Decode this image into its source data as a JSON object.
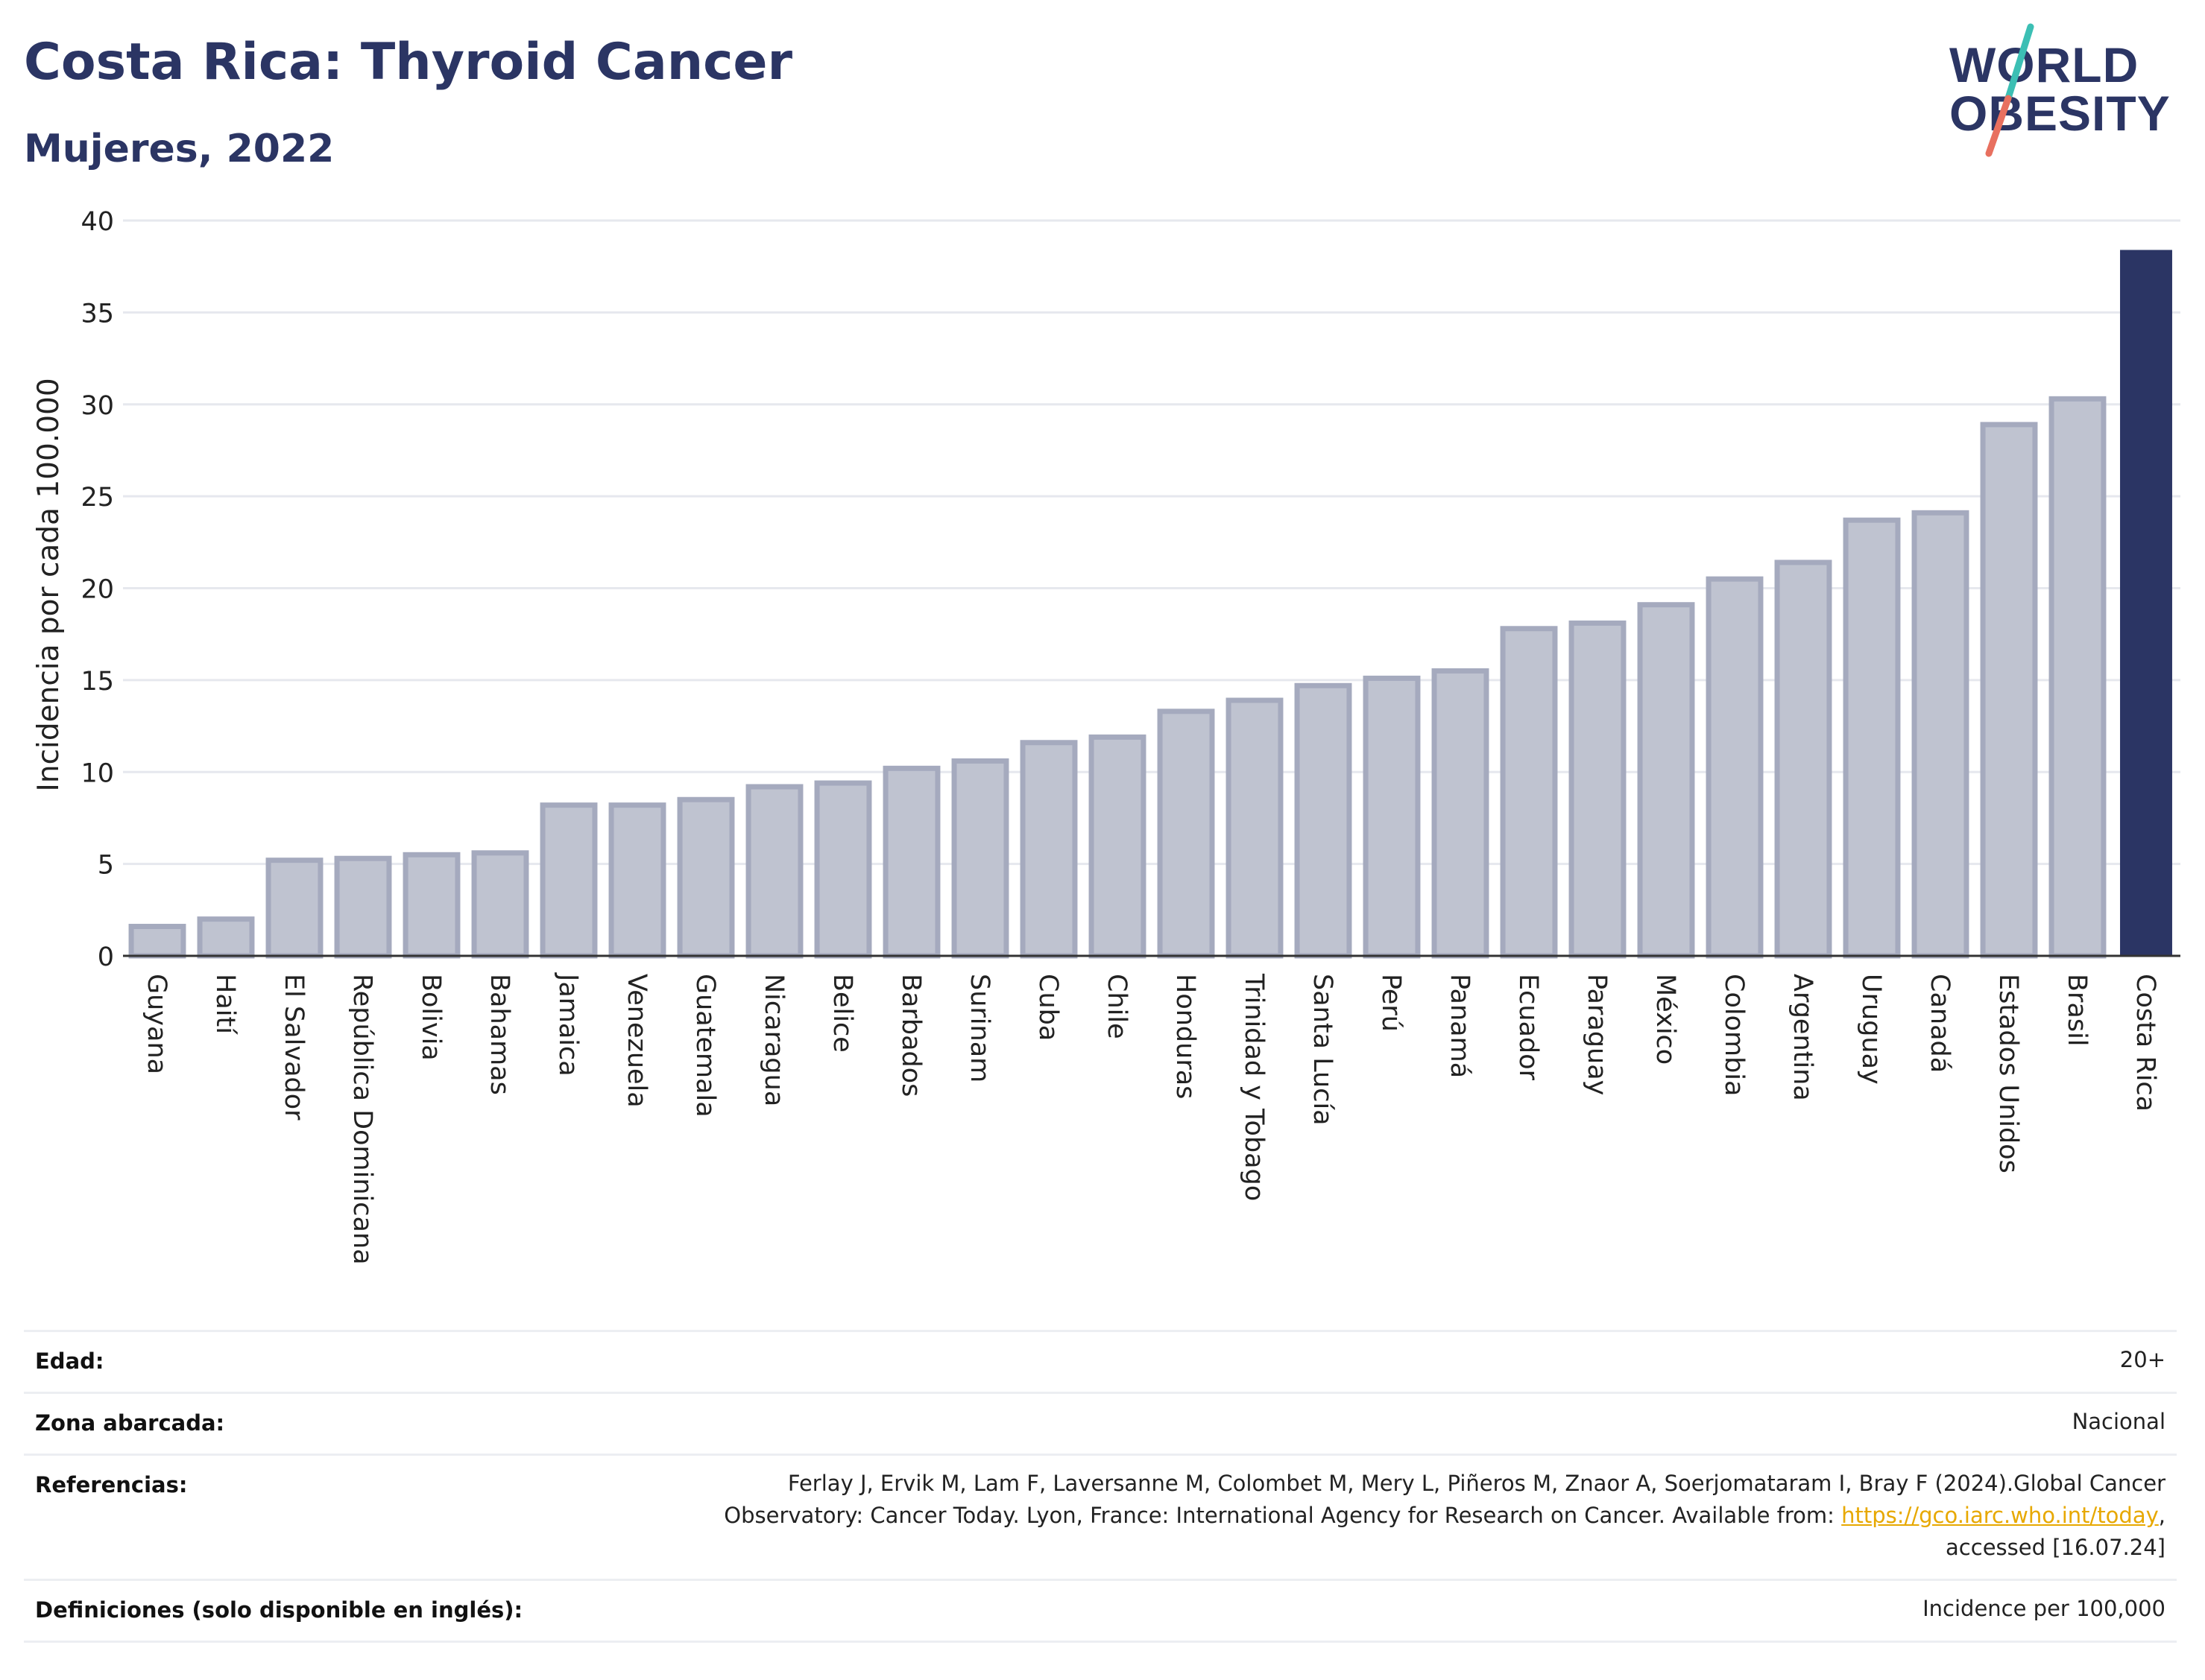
{
  "header": {
    "title": "Costa Rica: Thyroid Cancer",
    "subtitle": "Mujeres, 2022"
  },
  "logo": {
    "text_line1": "WORLD",
    "text_line2": "OBESITY",
    "colors": {
      "text": "#2b3564",
      "slash_teal": "#3cbfb4",
      "slash_coral": "#e8705f"
    }
  },
  "chart_data": {
    "type": "bar",
    "title": "Costa Rica: Thyroid Cancer",
    "subtitle": "Mujeres, 2022",
    "ylabel": "Incidencia por cada 100.000",
    "xlabel": "",
    "ylim": [
      0,
      40
    ],
    "yticks": [
      0,
      5,
      10,
      15,
      20,
      25,
      30,
      35,
      40
    ],
    "grid": true,
    "highlight": "Costa Rica",
    "colors": {
      "bar": "#bfc3d0",
      "bar_border": "#a5aabe",
      "highlight": "#2b3564",
      "grid": "#e6e8ee"
    },
    "categories": [
      "Guyana",
      "Haití",
      "El Salvador",
      "República Dominicana",
      "Bolivia",
      "Bahamas",
      "Jamaica",
      "Venezuela",
      "Guatemala",
      "Nicaragua",
      "Belice",
      "Barbados",
      "Surinam",
      "Cuba",
      "Chile",
      "Honduras",
      "Trinidad y Tobago",
      "Santa Lucía",
      "Perú",
      "Panamá",
      "Ecuador",
      "Paraguay",
      "México",
      "Colombia",
      "Argentina",
      "Uruguay",
      "Canadá",
      "Estados Unidos",
      "Brasil",
      "Costa Rica"
    ],
    "values": [
      1.6,
      2.0,
      5.2,
      5.3,
      5.5,
      5.6,
      8.2,
      8.2,
      8.5,
      9.2,
      9.4,
      10.2,
      10.6,
      11.6,
      11.9,
      13.3,
      13.9,
      14.7,
      15.1,
      15.5,
      17.8,
      18.1,
      19.1,
      20.5,
      21.4,
      23.7,
      24.1,
      28.9,
      30.3,
      38.4
    ]
  },
  "meta": {
    "rows": [
      {
        "label": "Edad:",
        "value": "20+"
      },
      {
        "label": "Zona abarcada:",
        "value": "Nacional"
      },
      {
        "label": "Referencias:",
        "value_line1": "Ferlay J, Ervik M, Lam F, Laversanne M, Colombet M, Mery L, Piñeros M, Znaor A, Soerjomataram I, Bray F (2024).Global Cancer",
        "value_line2_pre": "Observatory: Cancer Today. Lyon, France: International Agency for Research on Cancer. Available from: ",
        "value_link": "https://gco.iarc.who.int/today",
        "value_line2_post": ",",
        "value_line3": "accessed [16.07.24]"
      },
      {
        "label": "Definiciones (solo disponible en inglés):",
        "value": "Incidence per 100,000"
      }
    ]
  }
}
